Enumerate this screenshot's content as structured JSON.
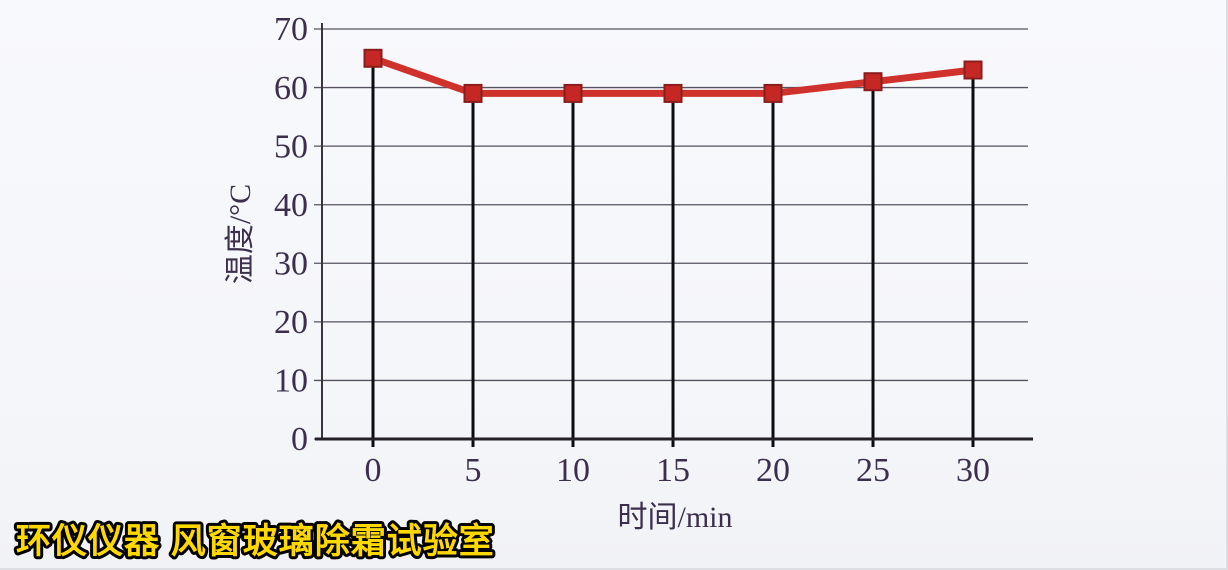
{
  "page": {
    "background": "#f7f8fb"
  },
  "watermark": {
    "text": "环仪仪器 风窗玻璃除霜试验室",
    "color": "#ffd800",
    "outline": "#000000"
  },
  "chart_data": {
    "type": "line",
    "title": "",
    "xlabel": "时间/min",
    "ylabel": "温度/°C",
    "x": [
      0,
      5,
      10,
      15,
      20,
      25,
      30
    ],
    "series": [
      {
        "name": "温度",
        "values": [
          65,
          59,
          59,
          59,
          59,
          61,
          63
        ]
      }
    ],
    "xlim": [
      0,
      30
    ],
    "ylim": [
      0,
      70
    ],
    "xticks": [
      0,
      5,
      10,
      15,
      20,
      25,
      30
    ],
    "yticks": [
      0,
      10,
      20,
      30,
      40,
      50,
      60,
      70
    ],
    "grid": "horizontal",
    "legend": "none",
    "marker": "square",
    "drop_lines": true,
    "colors": {
      "line": "#cf322c",
      "marker_fill": "#c52724",
      "marker_edge": "#8a1d1c",
      "gridline": "#56515e",
      "y_axis": "#39343f",
      "x_axis": "#232028",
      "drop_line": "#0b0b12",
      "tick_label": "#3c2f4d"
    }
  }
}
